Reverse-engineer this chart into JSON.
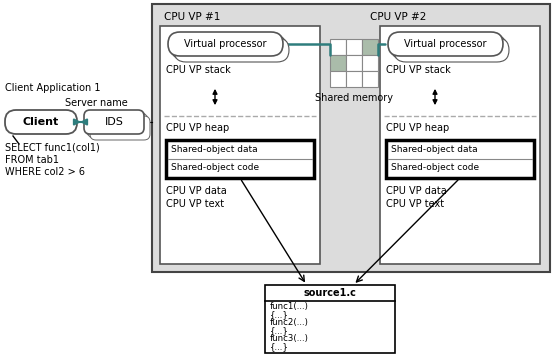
{
  "bg_color": "#ffffff",
  "light_gray": "#dcdcdc",
  "dark_gray": "#555555",
  "teal": "#2e7d7d",
  "shared_mem_gray": "#b0b8b0",
  "vp1_label": "CPU VP #1",
  "vp2_label": "CPU VP #2",
  "client_app_label": "Client Application 1",
  "server_name_label": "Server name",
  "client_label": "Client",
  "ids_label": "IDS",
  "sql_text": "SELECT func1(col1)\nFROM tab1\nWHERE col2 > 6",
  "source_box_title": "source1.c",
  "source_box_content": "func1(...)\n{...}\nfunc2(...)\n{...}\nfunc3(...)\n{...}",
  "shared_memory_label": "Shared memory"
}
